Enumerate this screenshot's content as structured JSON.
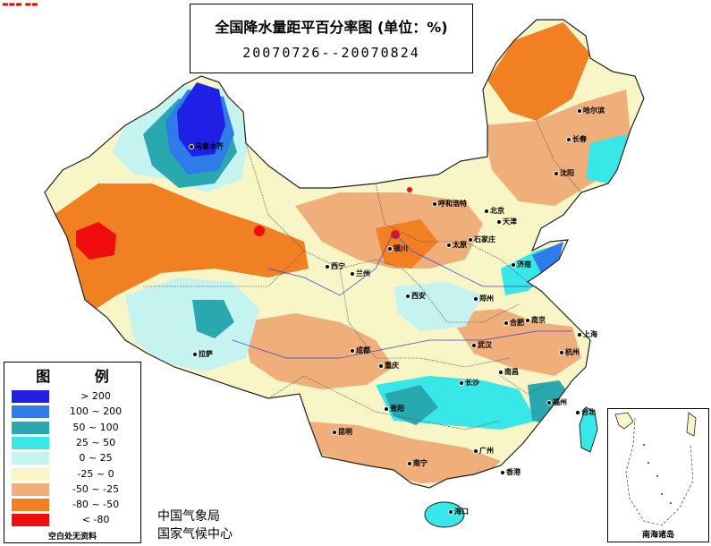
{
  "title": {
    "line1": "全国降水量距平百分率图 (单位：%)",
    "line2": "20070726--20070824"
  },
  "legend": {
    "title": "图 例",
    "items": [
      {
        "label": "> 200",
        "color": "#1f1fe6"
      },
      {
        "label": "100 ~ 200",
        "color": "#2f7bea"
      },
      {
        "label": "50 ~ 100",
        "color": "#2aa8b0"
      },
      {
        "label": "25 ~ 50",
        "color": "#38e8e8"
      },
      {
        "label": "0 ~ 25",
        "color": "#c4f3f0"
      },
      {
        "label": "-25 ~ 0",
        "color": "#f8f6c7"
      },
      {
        "label": "-50 ~ -25",
        "color": "#f0ae7a"
      },
      {
        "label": "-80 ~ -50",
        "color": "#f08022"
      },
      {
        "label": "< -80",
        "color": "#f00d0d"
      }
    ],
    "footer": "空白处无资料"
  },
  "agency": {
    "line1": "中国气象局",
    "line2": "国家气候中心"
  },
  "inset": {
    "label": "南海诸岛"
  },
  "cities": [
    {
      "name": "乌鲁木齐"
    },
    {
      "name": "哈尔滨"
    },
    {
      "name": "长春"
    },
    {
      "name": "沈阳"
    },
    {
      "name": "呼和浩特"
    },
    {
      "name": "北京"
    },
    {
      "name": "天津"
    },
    {
      "name": "太原"
    },
    {
      "name": "石家庄"
    },
    {
      "name": "银川"
    },
    {
      "name": "西宁"
    },
    {
      "name": "兰州"
    },
    {
      "name": "济南"
    },
    {
      "name": "西安"
    },
    {
      "name": "郑州"
    },
    {
      "name": "合肥"
    },
    {
      "name": "南京"
    },
    {
      "name": "上海"
    },
    {
      "name": "拉萨"
    },
    {
      "name": "成都"
    },
    {
      "name": "武汉"
    },
    {
      "name": "重庆"
    },
    {
      "name": "杭州"
    },
    {
      "name": "南昌"
    },
    {
      "name": "长沙"
    },
    {
      "name": "贵阳"
    },
    {
      "name": "福州"
    },
    {
      "name": "台北"
    },
    {
      "name": "昆明"
    },
    {
      "name": "南宁"
    },
    {
      "name": "广州"
    },
    {
      "name": "香港"
    },
    {
      "name": "海口"
    }
  ]
}
